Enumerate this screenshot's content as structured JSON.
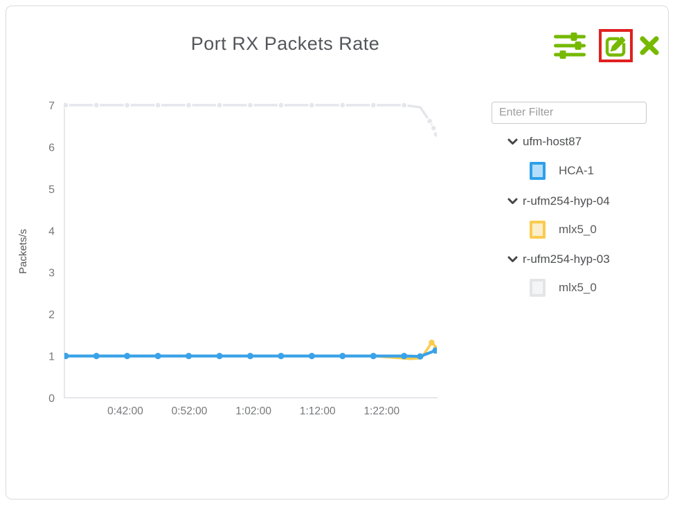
{
  "card": {
    "title": "Port RX Packets Rate"
  },
  "toolbar": {
    "icon_color": "#76b900",
    "edit_highlight_color": "#e02020",
    "settings_icon": "sliders-icon",
    "edit_icon": "edit-square-pencil-icon",
    "close_icon": "x-close-icon"
  },
  "sidebar": {
    "filter_placeholder": "Enter Filter",
    "tree": [
      {
        "label": "ufm-host87",
        "expanded": true,
        "children": [
          {
            "label": "HCA-1",
            "swatch_border": "#2f9fe8",
            "swatch_fill": "#b5defa"
          }
        ]
      },
      {
        "label": "r-ufm254-hyp-04",
        "expanded": true,
        "children": [
          {
            "label": "mlx5_0",
            "swatch_border": "#f9cb4f",
            "swatch_fill": "#faeecb"
          }
        ]
      },
      {
        "label": "r-ufm254-hyp-03",
        "expanded": true,
        "children": [
          {
            "label": "mlx5_0",
            "swatch_border": "#e3e5e9",
            "swatch_fill": "#f4f5f7"
          }
        ]
      }
    ]
  },
  "chart_data": {
    "type": "line",
    "title": "Port RX Packets Rate",
    "xlabel": "",
    "ylabel": "Packets/s",
    "ylim": [
      0,
      7
    ],
    "yticks": [
      0,
      1,
      2,
      3,
      4,
      5,
      6,
      7
    ],
    "xlim_minutes": [
      32.5,
      90.5
    ],
    "xticks": [
      {
        "minute": 42,
        "label": "0:42:00"
      },
      {
        "minute": 52,
        "label": "0:52:00"
      },
      {
        "minute": 62,
        "label": "1:02:00"
      },
      {
        "minute": 72,
        "label": "1:12:00"
      },
      {
        "minute": 82,
        "label": "1:22:00"
      }
    ],
    "grid": false,
    "legend_position": "right-tree",
    "axis_color": "#e6e7ea",
    "series": [
      {
        "name": "r-ufm254-hyp-03 / mlx5_0",
        "color": "#e4e6eb",
        "line_width": 3.5,
        "marker_radius": 4.2,
        "marker_halo": true,
        "points": [
          [
            32.7,
            7
          ],
          [
            37.5,
            7
          ],
          [
            42.3,
            7
          ],
          [
            47.1,
            7
          ],
          [
            51.9,
            7
          ],
          [
            56.7,
            7
          ],
          [
            61.5,
            7
          ],
          [
            66.3,
            7
          ],
          [
            71.1,
            7
          ],
          [
            75.9,
            7
          ],
          [
            80.7,
            7
          ],
          [
            85.5,
            7
          ],
          [
            88.0,
            6.95,
            0
          ],
          [
            89.5,
            6.62
          ],
          [
            90.1,
            6.45
          ],
          [
            90.5,
            6.3
          ]
        ]
      },
      {
        "name": "r-ufm254-hyp-04 / mlx5_0",
        "color": "#f9cb4f",
        "line_width": 3.5,
        "marker_radius": 4.2,
        "marker_halo": false,
        "points": [
          [
            32.7,
            1,
            0
          ],
          [
            37.5,
            1,
            0
          ],
          [
            42.3,
            1,
            0
          ],
          [
            47.1,
            1,
            0
          ],
          [
            51.9,
            1,
            0
          ],
          [
            56.7,
            1,
            0
          ],
          [
            61.5,
            1,
            0
          ],
          [
            66.3,
            1,
            0
          ],
          [
            71.1,
            1,
            0
          ],
          [
            75.9,
            1,
            0
          ],
          [
            80.7,
            1,
            0
          ],
          [
            84.0,
            0.96,
            0
          ],
          [
            86.5,
            0.93,
            0
          ],
          [
            88.2,
            0.95,
            0
          ],
          [
            89.8,
            1.32
          ],
          [
            90.2,
            1.26,
            0
          ],
          [
            90.5,
            1.18
          ]
        ]
      },
      {
        "name": "ufm-host87 / HCA-1",
        "color": "#3aa2e8",
        "line_width": 4.2,
        "marker_radius": 4.6,
        "marker_halo": false,
        "points": [
          [
            32.7,
            1
          ],
          [
            37.5,
            1
          ],
          [
            42.3,
            1
          ],
          [
            47.1,
            1
          ],
          [
            51.9,
            1
          ],
          [
            56.7,
            1
          ],
          [
            61.5,
            1
          ],
          [
            66.3,
            1
          ],
          [
            71.1,
            1
          ],
          [
            75.9,
            1
          ],
          [
            80.7,
            1
          ],
          [
            85.5,
            1
          ],
          [
            88.0,
            0.99
          ],
          [
            90.4,
            1.13
          ]
        ]
      }
    ]
  }
}
